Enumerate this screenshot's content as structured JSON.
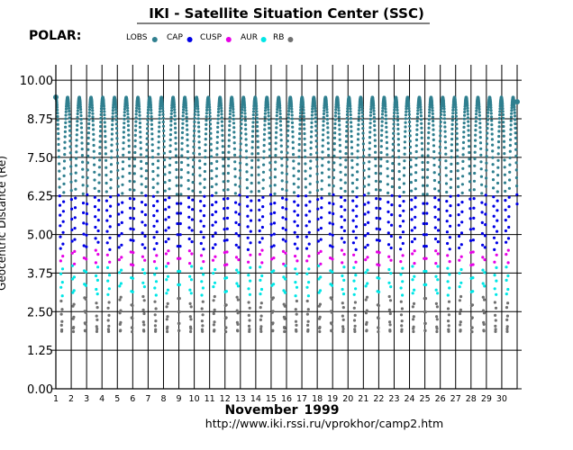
{
  "header": {
    "title": "IKI - Satellite Situation Center (SSC)",
    "satellite": "POLAR:"
  },
  "footer": {
    "month": "November",
    "year": "1999",
    "url": "http://www.iki.rssi.ru/vprokhor/camp2.htm"
  },
  "chart_data": {
    "type": "scatter",
    "title": "IKI - Satellite Situation Center (SSC)",
    "xlabel": "November 1999",
    "ylabel": "Geocentric Distance (Re)",
    "xlim": [
      1,
      31
    ],
    "ylim": [
      0,
      10.5
    ],
    "yticks": [
      "0.00",
      "1.25",
      "2.50",
      "3.75",
      "5.00",
      "6.25",
      "7.50",
      "8.75",
      "10.00"
    ],
    "ytick_values": [
      0,
      1.25,
      2.5,
      3.75,
      5.0,
      6.25,
      7.5,
      8.75,
      10.0
    ],
    "xticks": [
      "1",
      "2",
      "3",
      "4",
      "5",
      "6",
      "7",
      "8",
      "9",
      "10",
      "11",
      "12",
      "13",
      "14",
      "15",
      "16",
      "17",
      "18",
      "19",
      "20",
      "21",
      "22",
      "23",
      "24",
      "25",
      "26",
      "27",
      "28",
      "29",
      "30"
    ],
    "orbit": {
      "apogee_re": 9.45,
      "perigee_re": 1.85,
      "period_days": 0.7625,
      "first_apogee_day": 1.0
    },
    "region_legend": [
      {
        "name": "LOBS",
        "color": "#2f7f8f",
        "min_re": 6.3,
        "max_re": 10.0
      },
      {
        "name": "CAP",
        "color": "#0000e6",
        "min_re": 4.5,
        "max_re": 6.3
      },
      {
        "name": "CUSP",
        "color": "#e600e6",
        "min_re": 4.0,
        "max_re": 4.5
      },
      {
        "name": "AUR",
        "color": "#00e6e6",
        "min_re": 3.0,
        "max_re": 4.0
      },
      {
        "name": "RB",
        "color": "#707070",
        "min_re": 0.0,
        "max_re": 3.0
      }
    ],
    "grid": true
  }
}
